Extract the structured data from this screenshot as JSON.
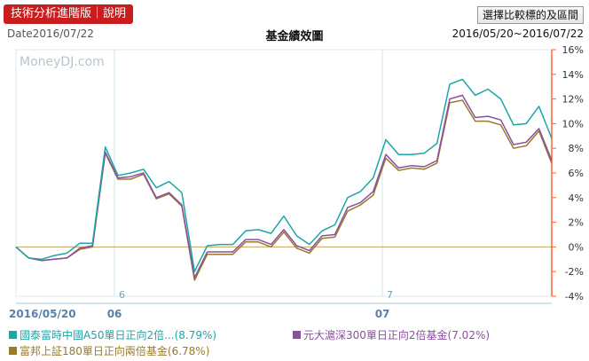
{
  "header": {
    "tech_button_label": "技術分析進階版｜說明",
    "range_button_label": "選擇比較標的及區間",
    "date_label": "Date2016/07/22",
    "title": "基金績效圖",
    "range_label": "2016/05/20~2016/07/22"
  },
  "watermark": "MoneyDJ.com",
  "colors": {
    "series1": "#1ea5a5",
    "series2": "#8c4fa0",
    "series3": "#9a7a2a",
    "axis_right": "#ff6633",
    "grid": "#cce6ee",
    "zero_line": "#c8a060"
  },
  "chart_data": {
    "type": "line",
    "title": "基金績效圖",
    "ylim": [
      -4,
      16
    ],
    "yticks": [
      "16%",
      "14%",
      "12%",
      "10%",
      "8%",
      "6%",
      "4%",
      "2%",
      "0%",
      "-2%",
      "-4%"
    ],
    "x_axis_labels": [
      "2016/05/20",
      "06",
      "07"
    ],
    "inner_month_labels": [
      "6",
      "7"
    ],
    "series": [
      {
        "name": "國泰富時中國A50單日正向2倍...",
        "legend_value": "(8.79%)",
        "values": [
          0,
          -0.9,
          -1.0,
          -0.7,
          -0.5,
          0.3,
          0.3,
          8.1,
          5.8,
          6.0,
          6.3,
          4.8,
          5.3,
          4.4,
          -2.0,
          0.1,
          0.2,
          0.2,
          1.3,
          1.4,
          1.1,
          2.5,
          0.9,
          0.2,
          1.3,
          1.8,
          4.0,
          4.5,
          5.6,
          8.7,
          7.5,
          7.5,
          7.6,
          8.4,
          13.2,
          13.6,
          12.3,
          12.8,
          12.0,
          9.9,
          10.0,
          11.4,
          8.8
        ]
      },
      {
        "name": "元大滬深300單日正向2倍基金",
        "legend_value": "(7.02%)",
        "values": [
          0,
          -0.9,
          -1.1,
          -1.0,
          -0.9,
          -0.1,
          0.1,
          7.7,
          5.6,
          5.7,
          6.0,
          4.0,
          4.4,
          3.4,
          -2.5,
          -0.4,
          -0.4,
          -0.4,
          0.6,
          0.6,
          0.2,
          1.4,
          0.1,
          -0.3,
          0.9,
          1.0,
          3.2,
          3.6,
          4.5,
          7.5,
          6.4,
          6.6,
          6.5,
          7.0,
          12.0,
          12.3,
          10.5,
          10.6,
          10.3,
          8.3,
          8.5,
          9.6,
          7.02
        ]
      },
      {
        "name": "富邦上証180單日正向兩倍基金",
        "legend_value": "(6.78%)",
        "values": [
          0,
          -0.9,
          -1.1,
          -1.0,
          -0.9,
          -0.2,
          0.0,
          7.6,
          5.5,
          5.5,
          5.9,
          3.9,
          4.3,
          3.3,
          -2.7,
          -0.6,
          -0.6,
          -0.6,
          0.4,
          0.4,
          0.0,
          1.2,
          -0.1,
          -0.5,
          0.7,
          0.8,
          2.9,
          3.4,
          4.2,
          7.2,
          6.2,
          6.4,
          6.3,
          6.8,
          11.7,
          11.9,
          10.2,
          10.2,
          9.9,
          8.0,
          8.2,
          9.4,
          6.78
        ]
      }
    ]
  }
}
